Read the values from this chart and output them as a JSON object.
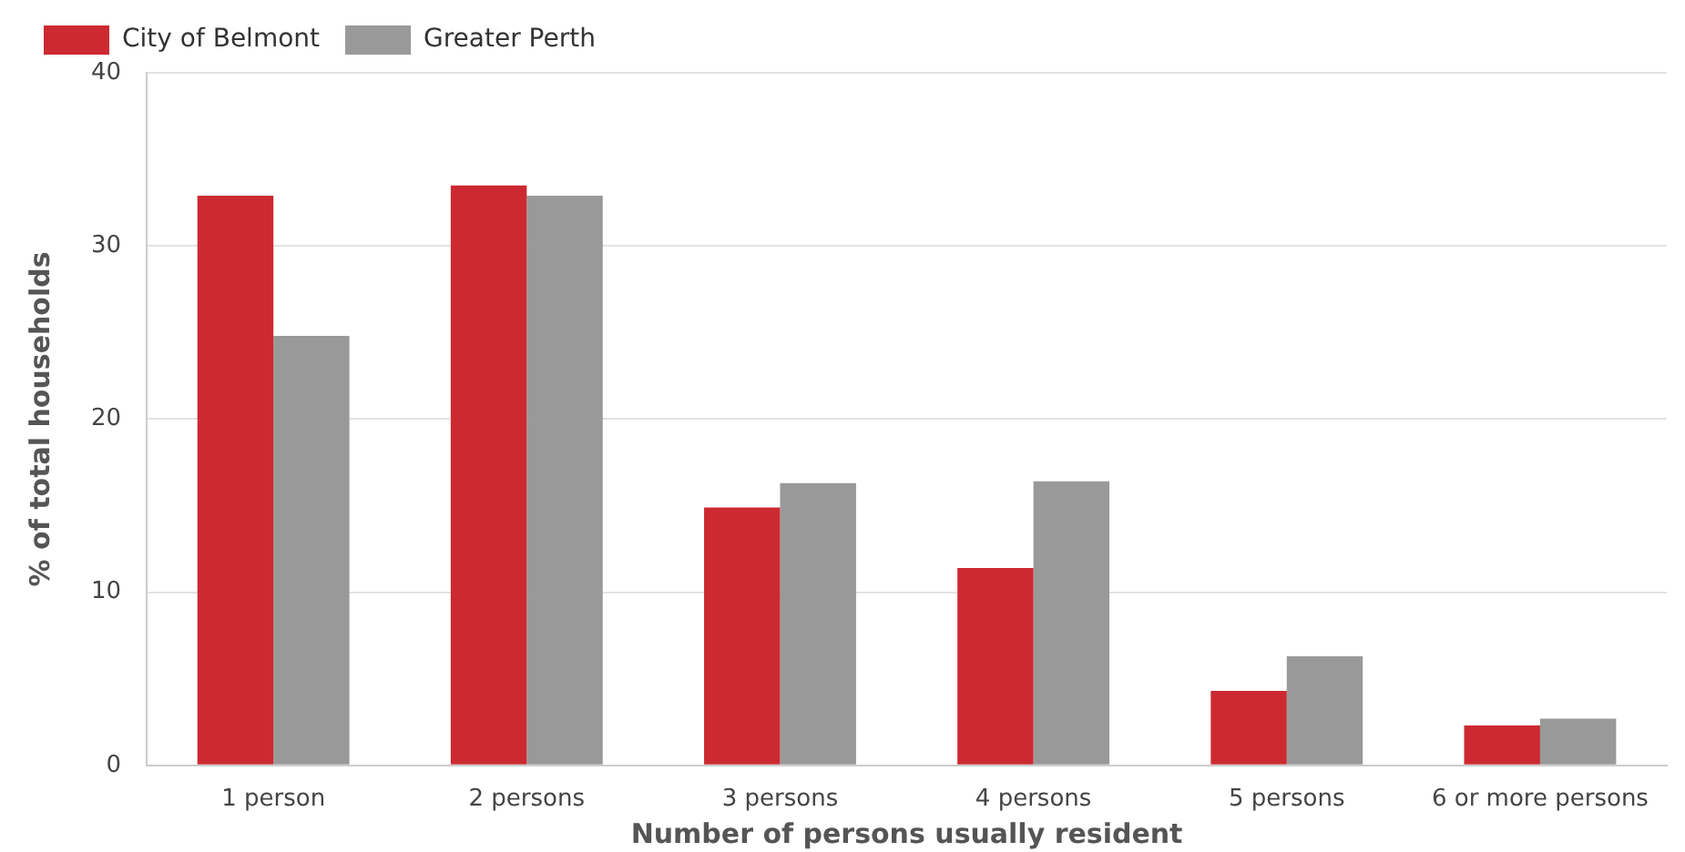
{
  "chart_data": {
    "type": "bar",
    "xlabel": "Number of persons usually resident",
    "ylabel": "% of total households",
    "categories": [
      "1 person",
      "2 persons",
      "3 persons",
      "4 persons",
      "5 persons",
      "6 or more persons"
    ],
    "series": [
      {
        "name": "City of Belmont",
        "color": "#cc2a30",
        "values": [
          32.9,
          33.5,
          14.9,
          11.4,
          4.3,
          2.3
        ]
      },
      {
        "name": "Greater Perth",
        "color": "#999999",
        "values": [
          24.8,
          32.9,
          16.3,
          16.4,
          6.3,
          2.7
        ]
      }
    ],
    "ylim": [
      0,
      40
    ],
    "yticks": [
      0,
      10,
      20,
      30,
      40
    ],
    "grid": "y",
    "legend": "top left"
  }
}
